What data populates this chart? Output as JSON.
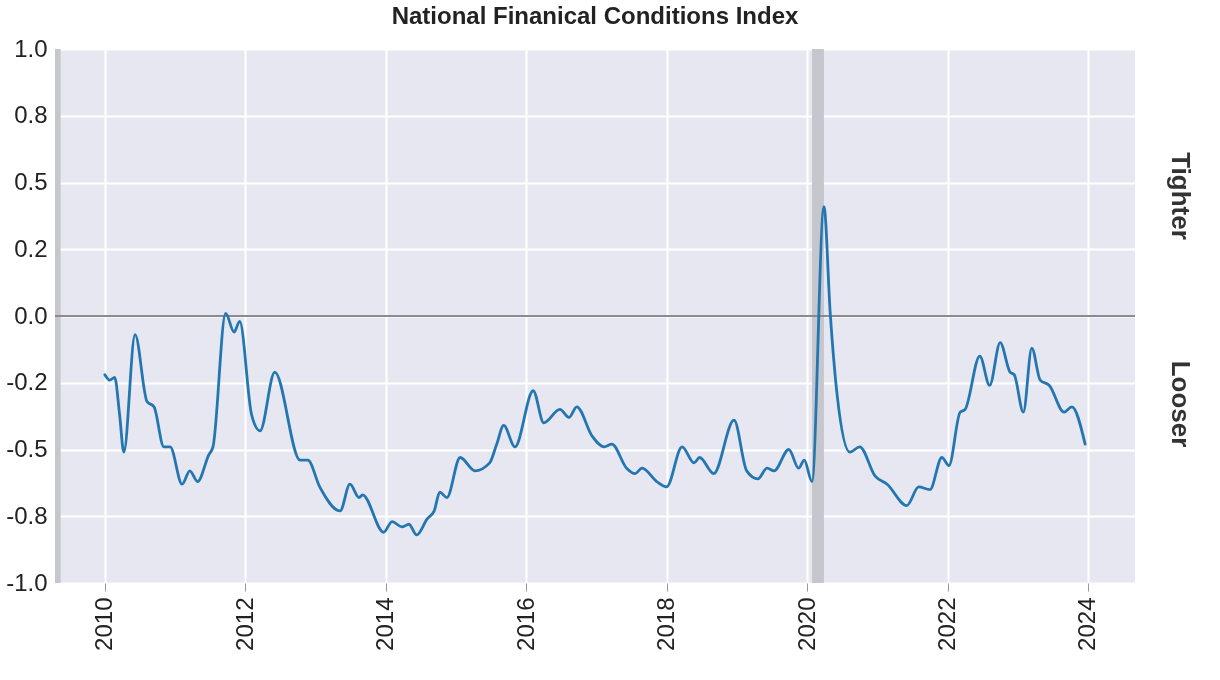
{
  "chart_data": {
    "type": "line",
    "title": "National Finanical Conditions Index",
    "x": [
      2010.0,
      2010.07,
      2010.14,
      2010.21,
      2010.27,
      2010.43,
      2010.6,
      2010.7,
      2010.84,
      2010.93,
      2011.1,
      2011.21,
      2011.32,
      2011.48,
      2011.54,
      2011.72,
      2011.84,
      2011.92,
      2012.09,
      2012.21,
      2012.42,
      2012.78,
      2012.89,
      2013.06,
      2013.35,
      2013.49,
      2013.62,
      2013.67,
      2013.97,
      2014.09,
      2014.23,
      2014.33,
      2014.44,
      2014.59,
      2014.69,
      2014.77,
      2014.87,
      2015.06,
      2015.27,
      2015.48,
      2015.58,
      2015.68,
      2015.84,
      2016.1,
      2016.25,
      2016.48,
      2016.61,
      2016.72,
      2016.94,
      2017.11,
      2017.22,
      2017.43,
      2017.55,
      2017.65,
      2017.86,
      2018.0,
      2018.22,
      2018.39,
      2018.47,
      2018.67,
      2018.96,
      2019.14,
      2019.3,
      2019.43,
      2019.53,
      2019.74,
      2019.88,
      2019.96,
      2020.07,
      2020.24,
      2020.33,
      2020.43,
      2020.61,
      2020.75,
      2020.97,
      2021.14,
      2021.42,
      2021.59,
      2021.75,
      2021.92,
      2022.02,
      2022.18,
      2022.25,
      2022.46,
      2022.6,
      2022.75,
      2022.89,
      2022.95,
      2023.08,
      2023.2,
      2023.32,
      2023.45,
      2023.66,
      2023.77,
      2023.96
    ],
    "series": [
      {
        "color": "#2476b1",
        "values": [
          -0.22,
          -0.24,
          -0.23,
          -0.37,
          -0.51,
          -0.07,
          -0.32,
          -0.34,
          -0.49,
          -0.49,
          -0.63,
          -0.58,
          -0.62,
          -0.52,
          -0.49,
          0.01,
          -0.06,
          -0.02,
          -0.37,
          -0.43,
          -0.21,
          -0.54,
          -0.54,
          -0.64,
          -0.73,
          -0.63,
          -0.68,
          -0.67,
          -0.81,
          -0.77,
          -0.79,
          -0.78,
          -0.82,
          -0.76,
          -0.73,
          -0.66,
          -0.68,
          -0.53,
          -0.58,
          -0.55,
          -0.48,
          -0.41,
          -0.49,
          -0.28,
          -0.4,
          -0.35,
          -0.38,
          -0.34,
          -0.45,
          -0.49,
          -0.48,
          -0.57,
          -0.59,
          -0.57,
          -0.62,
          -0.64,
          -0.49,
          -0.55,
          -0.53,
          -0.59,
          -0.39,
          -0.58,
          -0.61,
          -0.57,
          -0.58,
          -0.5,
          -0.57,
          -0.54,
          -0.62,
          0.41,
          0.01,
          -0.3,
          -0.51,
          -0.49,
          -0.6,
          -0.63,
          -0.71,
          -0.64,
          -0.65,
          -0.53,
          -0.56,
          -0.36,
          -0.35,
          -0.15,
          -0.26,
          -0.1,
          -0.21,
          -0.22,
          -0.36,
          -0.12,
          -0.24,
          -0.26,
          -0.36,
          -0.34,
          -0.48
        ]
      }
    ],
    "xlim": [
      2009.29,
      2024.67
    ],
    "xticks": [
      2010,
      2012,
      2014,
      2016,
      2018,
      2020,
      2022,
      2024
    ],
    "ylim": [
      -1,
      1
    ],
    "yticks": [
      {
        "value": -1,
        "label": "-1.0"
      },
      {
        "value": -0.75,
        "label": "-0.8"
      },
      {
        "value": -0.5,
        "label": "-0.5"
      },
      {
        "value": -0.25,
        "label": "-0.2"
      },
      {
        "value": 0,
        "label": "0.0"
      },
      {
        "value": 0.25,
        "label": "0.2"
      },
      {
        "value": 0.5,
        "label": "0.5"
      },
      {
        "value": 0.75,
        "label": "0.8"
      },
      {
        "value": 1,
        "label": "1.0"
      }
    ],
    "ref_lines": [
      {
        "axis": "y",
        "value": 0,
        "color": "#8a8a8f"
      }
    ],
    "bands": [
      {
        "axis": "x",
        "from": 2009.29,
        "to": 2009.37,
        "color": "#c6c6cd"
      },
      {
        "axis": "x",
        "from": 2020.07,
        "to": 2020.24,
        "color": "#c6c6cd"
      }
    ],
    "grid": true,
    "annotations": [
      "Tighter",
      "Looser"
    ]
  }
}
